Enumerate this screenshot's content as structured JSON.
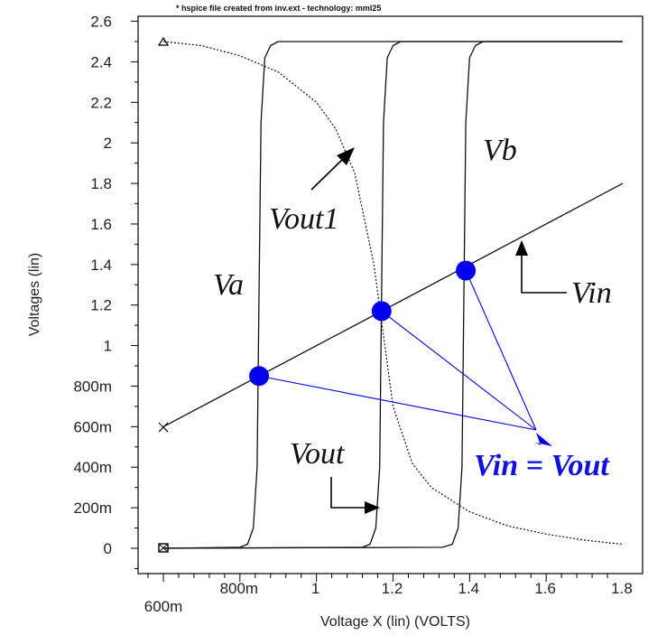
{
  "chart_data": {
    "type": "line",
    "title": "* hspice file created from inv.ext - technology: mml25",
    "xlabel": "Voltage X (lin) (VOLTS)",
    "ylabel": "Voltages (lin)",
    "xlim": [
      0.6,
      1.82
    ],
    "ylim": [
      -0.08,
      2.62
    ],
    "x_ticks": [
      {
        "v": 0.6,
        "label": "600m"
      },
      {
        "v": 0.8,
        "label": "800m"
      },
      {
        "v": 1.0,
        "label": "1"
      },
      {
        "v": 1.2,
        "label": "1.2"
      },
      {
        "v": 1.4,
        "label": "1.4"
      },
      {
        "v": 1.6,
        "label": "1.6"
      },
      {
        "v": 1.8,
        "label": "1.8"
      }
    ],
    "y_ticks": [
      {
        "v": 0,
        "label": "0"
      },
      {
        "v": 0.2,
        "label": "200m"
      },
      {
        "v": 0.4,
        "label": "400m"
      },
      {
        "v": 0.6,
        "label": "600m"
      },
      {
        "v": 0.8,
        "label": "800m"
      },
      {
        "v": 1.0,
        "label": "1"
      },
      {
        "v": 1.2,
        "label": "1.2"
      },
      {
        "v": 1.4,
        "label": "1.4"
      },
      {
        "v": 1.6,
        "label": "1.6"
      },
      {
        "v": 1.8,
        "label": "1.8"
      },
      {
        "v": 2.0,
        "label": "2"
      },
      {
        "v": 2.2,
        "label": "2.2"
      },
      {
        "v": 2.4,
        "label": "2.4"
      },
      {
        "v": 2.6,
        "label": "2.6"
      }
    ],
    "series": [
      {
        "name": "Vin",
        "x": [
          0.6,
          1.8
        ],
        "y": [
          0.6,
          1.8
        ]
      },
      {
        "name": "Vout1",
        "x": [
          0.6,
          0.7,
          0.8,
          0.9,
          1.0,
          1.05,
          1.1,
          1.15,
          1.2,
          1.25,
          1.3,
          1.4,
          1.5,
          1.6,
          1.7,
          1.8
        ],
        "y": [
          2.5,
          2.48,
          2.43,
          2.35,
          2.2,
          2.07,
          1.85,
          1.4,
          0.7,
          0.42,
          0.3,
          0.18,
          0.11,
          0.07,
          0.04,
          0.02
        ]
      },
      {
        "name": "Va",
        "x": [
          0.6,
          0.8,
          0.82,
          0.835,
          0.845,
          0.85,
          0.855,
          0.865,
          0.88,
          0.9,
          1.8
        ],
        "y": [
          0,
          0.005,
          0.02,
          0.1,
          0.4,
          1.25,
          2.1,
          2.42,
          2.48,
          2.5,
          2.5
        ]
      },
      {
        "name": "Vout",
        "x": [
          0.6,
          1.12,
          1.14,
          1.155,
          1.165,
          1.17,
          1.175,
          1.185,
          1.2,
          1.22,
          1.8
        ],
        "y": [
          0,
          0.005,
          0.02,
          0.1,
          0.4,
          1.25,
          2.1,
          2.42,
          2.48,
          2.5,
          2.5
        ]
      },
      {
        "name": "Vb",
        "x": [
          0.6,
          1.33,
          1.355,
          1.37,
          1.38,
          1.385,
          1.39,
          1.4,
          1.415,
          1.435,
          1.8
        ],
        "y": [
          0,
          0.005,
          0.02,
          0.1,
          0.4,
          1.25,
          2.1,
          2.42,
          2.48,
          2.5,
          2.5
        ]
      }
    ],
    "highlight_points": [
      {
        "x": 0.85,
        "y": 0.85
      },
      {
        "x": 1.17,
        "y": 1.17
      },
      {
        "x": 1.39,
        "y": 1.37
      }
    ],
    "annotations": [
      "Va",
      "Vout1",
      "Vb",
      "Vin",
      "Vout",
      "Vin = Vout"
    ],
    "colors": {
      "line": "#111111",
      "highlight": "#0000ee",
      "grid": "none"
    },
    "grid": false,
    "legend": "none"
  }
}
